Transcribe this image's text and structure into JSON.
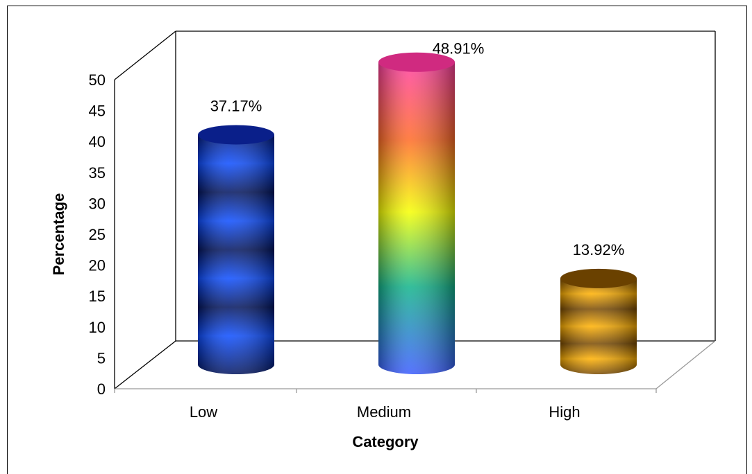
{
  "chart_data": {
    "type": "bar",
    "style": "3d-cylinder",
    "categories": [
      "Low",
      "Medium",
      "High"
    ],
    "values": [
      37.17,
      48.91,
      13.92
    ],
    "data_labels": [
      "37.17%",
      "48.91%",
      "13.92%"
    ],
    "xlabel": "Category",
    "ylabel": "Percentage",
    "ylim": [
      0,
      50
    ],
    "yticks": [
      0,
      5,
      10,
      15,
      20,
      25,
      30,
      35,
      40,
      45,
      50
    ],
    "grid": false,
    "legend": "none",
    "colors": {
      "Low": [
        "#00135e",
        "#0b4cff"
      ],
      "Medium": [
        "#ff3da0",
        "#ff6a24",
        "#f6ff00",
        "#10b38a",
        "#3a5bff"
      ],
      "High": [
        "#7a4a00",
        "#ffb000"
      ]
    }
  }
}
